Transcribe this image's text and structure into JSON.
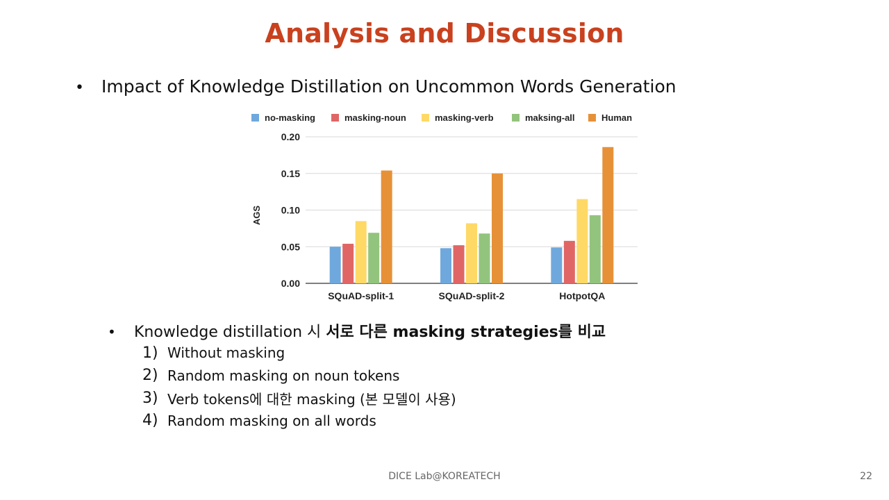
{
  "slide": {
    "title": "Analysis and Discussion",
    "main_bullet": "Impact of Knowledge Distillation on Uncommon Words Generation",
    "sub_bullet": {
      "text_plain": "Knowledge distillation 시 ",
      "text_bold_1": "서로 다른 masking strategies",
      "text_mid": "를 ",
      "text_bold_2": "비교"
    },
    "list": [
      {
        "num": "1)",
        "text": "Without masking"
      },
      {
        "num": "2)",
        "text": "Random masking on noun tokens"
      },
      {
        "num": "3)",
        "text": "Verb tokens에 대한 masking (본 모델이 사용)"
      },
      {
        "num": "4)",
        "text": "Random masking on all words"
      }
    ],
    "footer": "DICE Lab@KOREATECH",
    "page_number": "22"
  },
  "chart_data": {
    "type": "bar",
    "categories": [
      "SQuAD-split-1",
      "SQuAD-split-2",
      "HotpotQA"
    ],
    "series": [
      {
        "name": "no-masking",
        "color": "#6fa8dc",
        "values": [
          0.05,
          0.048,
          0.049
        ]
      },
      {
        "name": "masking-noun",
        "color": "#e06666",
        "values": [
          0.054,
          0.052,
          0.058
        ]
      },
      {
        "name": "masking-verb",
        "color": "#ffd966",
        "values": [
          0.085,
          0.082,
          0.115
        ]
      },
      {
        "name": "maksing-all",
        "color": "#93c47d",
        "values": [
          0.069,
          0.068,
          0.093
        ]
      },
      {
        "name": "Human",
        "color": "#e69138",
        "values": [
          0.154,
          0.15,
          0.186
        ]
      }
    ],
    "ylabel": "AGS",
    "ylim": [
      0,
      0.2
    ],
    "yticks": [
      "0.00",
      "0.05",
      "0.10",
      "0.15",
      "0.20"
    ],
    "grid": true,
    "legend": "top"
  }
}
